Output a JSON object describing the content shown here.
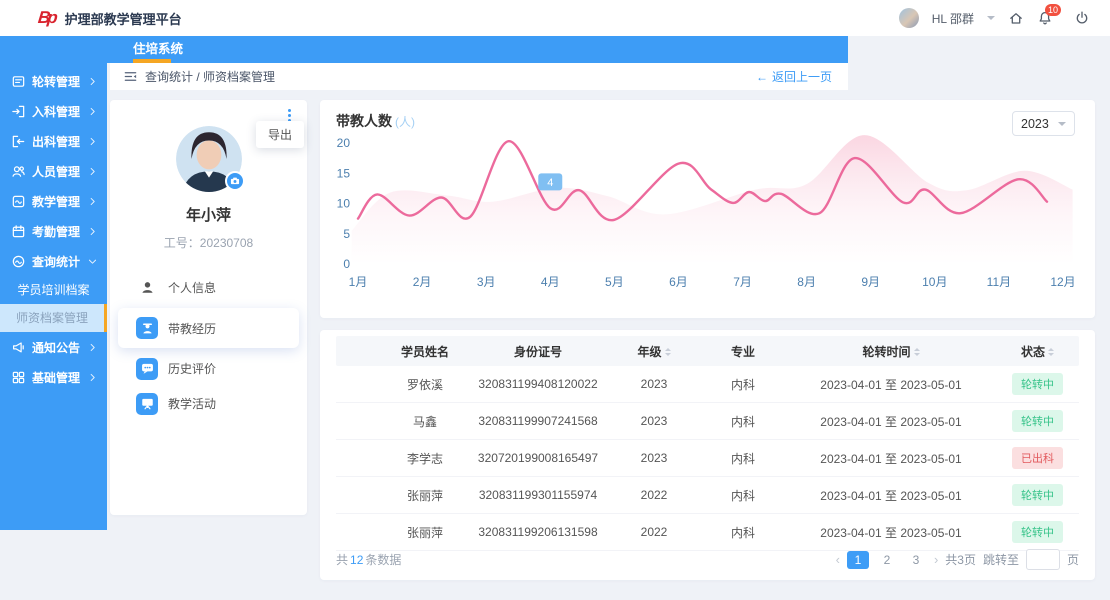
{
  "header": {
    "title": "护理部教学管理平台",
    "logo": "Bp",
    "user": "HL 邵群",
    "bell_badge": "10"
  },
  "nav": {
    "tab": "住培系统"
  },
  "breadcrumb": {
    "path": "查询统计 / 师资档案管理",
    "back_arrow": "←",
    "back": "返回上一页"
  },
  "sidebar": {
    "items": [
      {
        "label": "轮转管理",
        "icon": "rotate",
        "expanded": false
      },
      {
        "label": "入科管理",
        "icon": "enter",
        "expanded": false
      },
      {
        "label": "出科管理",
        "icon": "exit",
        "expanded": false
      },
      {
        "label": "人员管理",
        "icon": "people",
        "expanded": false
      },
      {
        "label": "教学管理",
        "icon": "teach",
        "expanded": false
      },
      {
        "label": "考勤管理",
        "icon": "attendance",
        "expanded": false
      },
      {
        "label": "查询统计",
        "icon": "stats",
        "expanded": true,
        "children": [
          {
            "label": "学员培训档案",
            "active": false
          },
          {
            "label": "师资档案管理",
            "active": true
          }
        ]
      },
      {
        "label": "通知公告",
        "icon": "notice",
        "expanded": false
      },
      {
        "label": "基础管理",
        "icon": "base",
        "expanded": false
      }
    ]
  },
  "profile": {
    "name": "年小萍",
    "employee_no": "工号：20230708",
    "export_label": "导出",
    "menu": [
      {
        "label": "个人信息",
        "icon": "user",
        "active": false,
        "plain": true
      },
      {
        "label": "带教经历",
        "icon": "mentor",
        "active": true,
        "plain": false
      },
      {
        "label": "历史评价",
        "icon": "comment",
        "active": false,
        "plain": false
      },
      {
        "label": "教学活动",
        "icon": "board",
        "active": false,
        "plain": false
      }
    ]
  },
  "chart": {
    "title": "带教人数",
    "unit": "(人)",
    "year": "2023"
  },
  "chart_data": {
    "type": "line",
    "title": "带教人数 (人)",
    "x_labels": [
      "1月",
      "2月",
      "3月",
      "4月",
      "5月",
      "6月",
      "7月",
      "8月",
      "9月",
      "10月",
      "11月",
      "12月"
    ],
    "ylim": [
      0,
      20
    ],
    "yticks": [
      0,
      5,
      10,
      15,
      20
    ],
    "grid": false,
    "legend": false,
    "series": [
      {
        "name": "带教人数",
        "type": "line",
        "color": "#ec6a9c",
        "points": [
          [
            1,
            7.5
          ],
          [
            1.3,
            11.5
          ],
          [
            1.8,
            8
          ],
          [
            2.3,
            11
          ],
          [
            2.75,
            7.8
          ],
          [
            3.35,
            20.3
          ],
          [
            4,
            9.2
          ],
          [
            4.45,
            12.2
          ],
          [
            5,
            7.3
          ],
          [
            6,
            16.6
          ],
          [
            6.5,
            12.4
          ],
          [
            6.85,
            10.1
          ],
          [
            7.1,
            11.9
          ],
          [
            7.35,
            10.4
          ],
          [
            7.6,
            11.6
          ],
          [
            8.2,
            8.4
          ],
          [
            8.75,
            17.5
          ],
          [
            9.5,
            10.2
          ],
          [
            9.85,
            12.3
          ],
          [
            10.4,
            8.4
          ],
          [
            11.3,
            14
          ],
          [
            11.75,
            10.3
          ]
        ]
      },
      {
        "name": "背景面积",
        "type": "area",
        "color": "#f6adc4",
        "points": [
          [
            0.9,
            5.5
          ],
          [
            1.5,
            11.8
          ],
          [
            2.4,
            11.3
          ],
          [
            3.1,
            10.3
          ],
          [
            4.1,
            12.6
          ],
          [
            4.9,
            11.2
          ],
          [
            5.8,
            8.2
          ],
          [
            7.2,
            12.3
          ],
          [
            8,
            13.2
          ],
          [
            8.9,
            21.3
          ],
          [
            9.9,
            13.4
          ],
          [
            10.5,
            12.2
          ],
          [
            11.4,
            15.4
          ],
          [
            12.15,
            12.3
          ]
        ]
      }
    ],
    "tooltip": {
      "label": "4",
      "x": 4,
      "y": 13.5,
      "color": "#80bff2"
    }
  },
  "table": {
    "columns": [
      {
        "label": "学员姓名",
        "sortable": false
      },
      {
        "label": "身份证号",
        "sortable": false
      },
      {
        "label": "年级",
        "sortable": true
      },
      {
        "label": "专业",
        "sortable": false
      },
      {
        "label": "轮转时间",
        "sortable": true
      },
      {
        "label": "状态",
        "sortable": true
      }
    ],
    "rows": [
      {
        "name": "罗依溪",
        "id": "320831199408120022",
        "grade": "2023",
        "major": "内科",
        "period": "2023-04-01 至 2023-05-01",
        "status": "轮转中",
        "status_type": "active",
        "avatar_tone": "dark"
      },
      {
        "name": "马鑫",
        "id": "320831199907241568",
        "grade": "2023",
        "major": "内科",
        "period": "2023-04-01 至 2023-05-01",
        "status": "轮转中",
        "status_type": "active",
        "avatar_tone": "teal"
      },
      {
        "name": "李学志",
        "id": "320720199008165497",
        "grade": "2023",
        "major": "内科",
        "period": "2023-04-01 至 2023-05-01",
        "status": "已出科",
        "status_type": "done",
        "avatar_tone": "navy"
      },
      {
        "name": "张丽萍",
        "id": "320831199301155974",
        "grade": "2022",
        "major": "内科",
        "period": "2023-04-01 至 2023-05-01",
        "status": "轮转中",
        "status_type": "active",
        "avatar_tone": "tan"
      },
      {
        "name": "张丽萍",
        "id": "320831199206131598",
        "grade": "2022",
        "major": "内科",
        "period": "2023-04-01 至 2023-05-01",
        "status": "轮转中",
        "status_type": "active",
        "avatar_tone": "tan"
      }
    ],
    "footer": {
      "total_prefix": "共",
      "total_count": "12",
      "total_suffix": "条数据",
      "prev": "‹",
      "next": "›",
      "pages": [
        "1",
        "2",
        "3"
      ],
      "active_page": "1",
      "pages_total": "共3页",
      "jump_label": "跳转至",
      "jump_suffix": "页",
      "jump_value": ""
    }
  },
  "colors": {
    "primary": "#3d9cf6",
    "accent_orange": "#f5a623",
    "line_pink": "#ec6a9c",
    "axis": "#4c7fae",
    "badge_green": "#36c389",
    "badge_red": "#e25a5e"
  }
}
